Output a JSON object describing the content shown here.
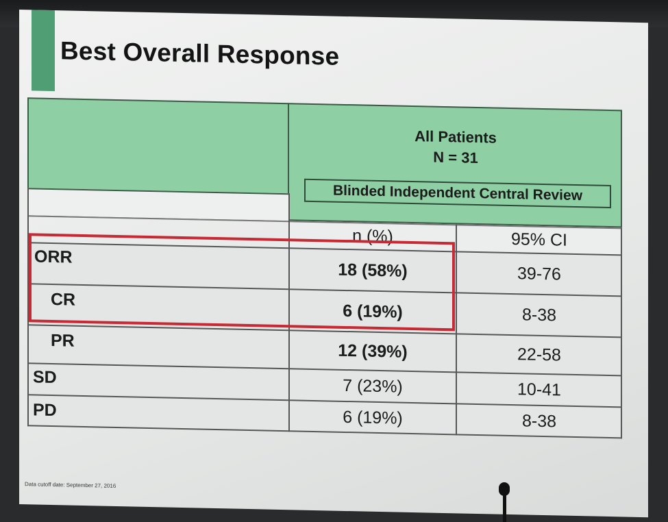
{
  "slide": {
    "title": "Best Overall Response",
    "footnote": "Data cutoff date: September 27, 2016"
  },
  "table": {
    "header_line1": "All Patients",
    "header_line2": "N = 31",
    "subheader": "Blinded Independent Central Review",
    "col_n": "n (%)",
    "col_ci": "95% CI",
    "rows": [
      {
        "label": "ORR",
        "n": "18 (58%)",
        "ci": "39-76"
      },
      {
        "label": "CR",
        "n": "6 (19%)",
        "ci": "8-38"
      },
      {
        "label": "PR",
        "n": "12 (39%)",
        "ci": "22-58"
      },
      {
        "label": "SD",
        "n": "7 (23%)",
        "ci": "10-41"
      },
      {
        "label": "PD",
        "n": "6  (19%)",
        "ci": "8-38"
      }
    ]
  },
  "colors": {
    "accent": "#4f9e74",
    "header_green": "#8ed0a4",
    "highlight_red": "#c62a34"
  }
}
